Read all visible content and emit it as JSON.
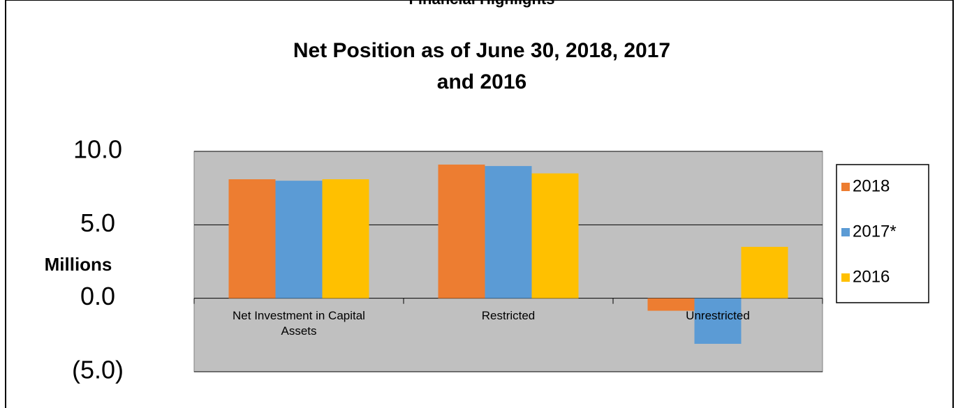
{
  "header": "Financial Highlights",
  "chart_data": {
    "type": "bar",
    "title": "Net Position as of June 30, 2018, 2017\nand 2016",
    "y_label": "Millions",
    "categories": [
      "Net Investment in Capital Assets",
      "Restricted",
      "Unrestricted"
    ],
    "series": [
      {
        "name": "2018",
        "color": "#ed7d31",
        "values": [
          8.1,
          9.1,
          -0.85
        ]
      },
      {
        "name": "2017*",
        "color": "#5b9bd5",
        "values": [
          8.0,
          9.0,
          -3.1
        ]
      },
      {
        "name": "2016",
        "color": "#ffc000",
        "values": [
          8.1,
          8.5,
          3.5
        ]
      }
    ],
    "ylim": [
      -5,
      10
    ],
    "yticks": [
      {
        "value": -5,
        "label": "(5.0)"
      },
      {
        "value": 0,
        "label": "0.0"
      },
      {
        "value": 5,
        "label": "5.0"
      },
      {
        "value": 10,
        "label": "10.0"
      }
    ],
    "grid": true,
    "legend": "right"
  }
}
